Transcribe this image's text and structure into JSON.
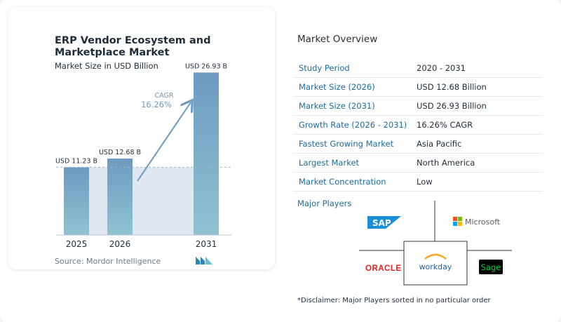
{
  "chart": {
    "title": "ERP Vendor Ecosystem and Marketplace Market",
    "subtitle": "Market Size in USD Billion",
    "source": "Source: Mordor Intelligence",
    "cagr_label": "CAGR",
    "cagr_value": "16.26%"
  },
  "chart_data": {
    "type": "bar",
    "categories": [
      "2025",
      "2026",
      "2031"
    ],
    "values": [
      11.23,
      12.68,
      26.93
    ],
    "data_labels": [
      "USD 11.23 B",
      "USD 12.68 B",
      "USD 26.93 B"
    ],
    "ylim": [
      0,
      30
    ],
    "grid": false,
    "colors": {
      "bar_top": "#6d9ac0",
      "bar_bottom": "#8fc3d2",
      "arrow": "#6d9ac0",
      "band": "#dfe8f0"
    }
  },
  "overview": {
    "title": "Market Overview",
    "rows": [
      {
        "key": "Study Period",
        "value": "2020 - 2031"
      },
      {
        "key": "Market Size (2026)",
        "value": "USD 12.68 Billion"
      },
      {
        "key": "Market Size (2031)",
        "value": "USD 26.93 Billion"
      },
      {
        "key": "Growth Rate (2026 - 2031)",
        "value": "16.26% CAGR"
      },
      {
        "key": "Fastest Growing Market",
        "value": "Asia Pacific"
      },
      {
        "key": "Largest Market",
        "value": "North America"
      },
      {
        "key": "Market Concentration",
        "value": "Low"
      }
    ]
  },
  "players": {
    "title": "Major Players",
    "logos": [
      "SAP",
      "Microsoft",
      "ORACLE",
      "workday",
      "Sage"
    ],
    "disclaimer": "*Disclaimer: Major Players sorted in no particular order"
  }
}
